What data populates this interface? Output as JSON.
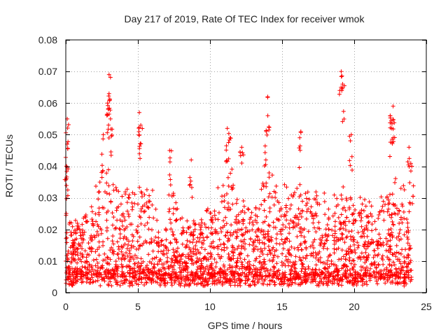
{
  "chart_data": {
    "type": "scatter",
    "title": "Day 217 of 2019, Rate Of TEC Index for receiver wmok",
    "xlabel": "GPS time / hours",
    "ylabel": "ROTI / TECUs",
    "xlim": [
      0,
      25
    ],
    "ylim": [
      0,
      0.08
    ],
    "xticks": [
      0,
      5,
      10,
      15,
      20,
      25
    ],
    "yticks": [
      0,
      0.01,
      0.02,
      0.03,
      0.04,
      0.05,
      0.06,
      0.07,
      0.08
    ],
    "xtick_labels": [
      "0",
      "5",
      "10",
      "15",
      "20",
      "25"
    ],
    "ytick_labels": [
      "0",
      "0.01",
      "0.02",
      "0.03",
      "0.04",
      "0.05",
      "0.06",
      "0.07",
      "0.08"
    ],
    "grid": true,
    "marker": "+",
    "color": "#ff0000",
    "series": [
      {
        "name": "ROTI",
        "peaks": [
          {
            "x": 0.1,
            "y": 0.055
          },
          {
            "x": 0.1,
            "y": 0.047
          },
          {
            "x": 0.05,
            "y": 0.036
          },
          {
            "x": 2.6,
            "y": 0.05
          },
          {
            "x": 3.0,
            "y": 0.069
          },
          {
            "x": 3.0,
            "y": 0.063
          },
          {
            "x": 3.1,
            "y": 0.055
          },
          {
            "x": 2.9,
            "y": 0.06
          },
          {
            "x": 5.1,
            "y": 0.057
          },
          {
            "x": 5.2,
            "y": 0.053
          },
          {
            "x": 7.2,
            "y": 0.045
          },
          {
            "x": 8.7,
            "y": 0.042
          },
          {
            "x": 11.2,
            "y": 0.052
          },
          {
            "x": 11.4,
            "y": 0.049
          },
          {
            "x": 12.2,
            "y": 0.046
          },
          {
            "x": 13.9,
            "y": 0.051
          },
          {
            "x": 14.0,
            "y": 0.062
          },
          {
            "x": 16.3,
            "y": 0.051
          },
          {
            "x": 19.1,
            "y": 0.07
          },
          {
            "x": 19.2,
            "y": 0.066
          },
          {
            "x": 19.8,
            "y": 0.05
          },
          {
            "x": 22.7,
            "y": 0.059
          },
          {
            "x": 22.5,
            "y": 0.056
          },
          {
            "x": 22.6,
            "y": 0.052
          },
          {
            "x": 23.8,
            "y": 0.046
          },
          {
            "x": 24.0,
            "y": 0.04
          }
        ]
      }
    ]
  }
}
